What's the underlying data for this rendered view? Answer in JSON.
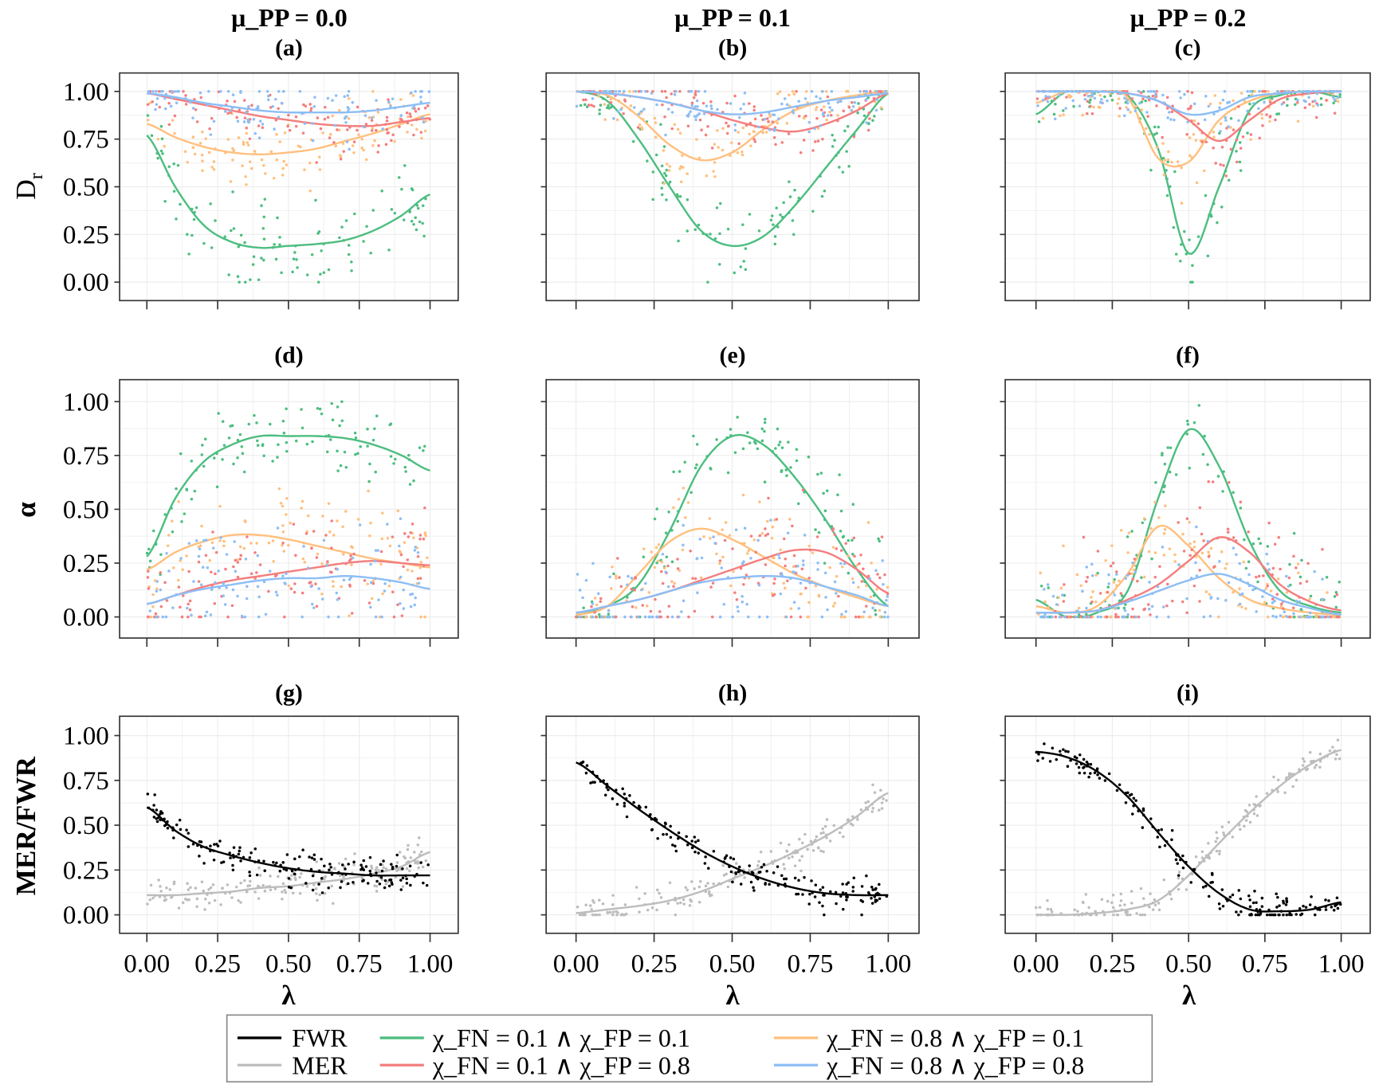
{
  "colors": {
    "FWR": "#000000",
    "MER": "#bdbdbd",
    "g11": "#4dbe80",
    "g81": "#ffc07f",
    "g18": "#f47e7e",
    "g88": "#8dbef5"
  },
  "column_titles": [
    "μ_PP = 0.0",
    "μ_PP = 0.1",
    "μ_PP = 0.2"
  ],
  "row_ylabels": [
    "D",
    "r",
    "α",
    "MER/FWR"
  ],
  "xlabel": "λ",
  "y_ticks": [
    "0.00",
    "0.25",
    "0.50",
    "0.75",
    "1.00"
  ],
  "x_ticks": [
    "0.00",
    "0.25",
    "0.50",
    "0.75",
    "1.00"
  ],
  "legend": [
    {
      "key": "FWR",
      "label": "FWR"
    },
    {
      "key": "MER",
      "label": "MER"
    },
    {
      "key": "g11",
      "label": "χ_FN = 0.1 ∧ χ_FP = 0.1"
    },
    {
      "key": "g18",
      "label": "χ_FN = 0.1 ∧ χ_FP = 0.8"
    },
    {
      "key": "g81",
      "label": "χ_FN = 0.8 ∧ χ_FP = 0.1"
    },
    {
      "key": "g88",
      "label": "χ_FN = 0.8 ∧ χ_FP = 0.8"
    }
  ],
  "chart_data": {
    "type": "scatter",
    "xlabel": "λ",
    "xlim": [
      0,
      1
    ],
    "ylim": [
      0,
      1
    ],
    "grid": true,
    "legend_position": "bottom",
    "x": [
      0,
      0.1,
      0.2,
      0.3,
      0.4,
      0.5,
      0.6,
      0.7,
      0.8,
      0.9,
      1.0
    ],
    "panels": [
      {
        "label": "(a)",
        "ylabel": "Dr",
        "series": [
          {
            "key": "g11",
            "y": [
              0.77,
              0.5,
              0.3,
              0.21,
              0.18,
              0.19,
              0.2,
              0.22,
              0.27,
              0.35,
              0.46
            ]
          },
          {
            "key": "g81",
            "y": [
              0.83,
              0.76,
              0.71,
              0.68,
              0.67,
              0.68,
              0.7,
              0.74,
              0.78,
              0.83,
              0.88
            ]
          },
          {
            "key": "g18",
            "y": [
              0.99,
              0.96,
              0.93,
              0.9,
              0.87,
              0.85,
              0.83,
              0.82,
              0.82,
              0.84,
              0.86
            ]
          },
          {
            "key": "g88",
            "y": [
              0.99,
              0.97,
              0.94,
              0.92,
              0.9,
              0.89,
              0.89,
              0.89,
              0.9,
              0.92,
              0.94
            ]
          }
        ]
      },
      {
        "label": "(b)",
        "ylabel": "Dr",
        "series": [
          {
            "key": "g11",
            "y": [
              1.0,
              0.95,
              0.75,
              0.5,
              0.27,
              0.19,
              0.24,
              0.4,
              0.6,
              0.8,
              0.99
            ]
          },
          {
            "key": "g81",
            "y": [
              1.0,
              0.98,
              0.87,
              0.72,
              0.64,
              0.68,
              0.8,
              0.9,
              0.95,
              0.98,
              1.0
            ]
          },
          {
            "key": "g18",
            "y": [
              1.0,
              0.99,
              0.97,
              0.94,
              0.9,
              0.85,
              0.81,
              0.79,
              0.83,
              0.9,
              0.99
            ]
          },
          {
            "key": "g88",
            "y": [
              1.0,
              0.99,
              0.97,
              0.94,
              0.9,
              0.88,
              0.89,
              0.92,
              0.95,
              0.97,
              0.99
            ]
          }
        ]
      },
      {
        "label": "(c)",
        "ylabel": "Dr",
        "series": [
          {
            "key": "g11",
            "y": [
              0.88,
              1.0,
              1.0,
              0.98,
              0.7,
              0.15,
              0.5,
              0.9,
              0.98,
              1.0,
              0.97
            ]
          },
          {
            "key": "g81",
            "y": [
              0.94,
              1.0,
              1.0,
              0.97,
              0.65,
              0.63,
              0.85,
              0.95,
              0.99,
              1.0,
              1.0
            ]
          },
          {
            "key": "g18",
            "y": [
              1.0,
              1.0,
              1.0,
              0.99,
              0.95,
              0.85,
              0.74,
              0.85,
              0.96,
              0.99,
              1.0
            ]
          },
          {
            "key": "g88",
            "y": [
              1.0,
              1.0,
              1.0,
              0.99,
              0.95,
              0.88,
              0.9,
              0.97,
              0.99,
              1.0,
              1.0
            ]
          }
        ]
      },
      {
        "label": "(d)",
        "ylabel": "α",
        "series": [
          {
            "key": "g11",
            "y": [
              0.28,
              0.55,
              0.72,
              0.8,
              0.84,
              0.84,
              0.84,
              0.83,
              0.8,
              0.75,
              0.68
            ]
          },
          {
            "key": "g81",
            "y": [
              0.22,
              0.3,
              0.35,
              0.38,
              0.38,
              0.36,
              0.33,
              0.3,
              0.27,
              0.25,
              0.23
            ]
          },
          {
            "key": "g18",
            "y": [
              0.06,
              0.1,
              0.14,
              0.17,
              0.19,
              0.21,
              0.23,
              0.25,
              0.26,
              0.25,
              0.24
            ]
          },
          {
            "key": "g88",
            "y": [
              0.06,
              0.1,
              0.13,
              0.15,
              0.17,
              0.18,
              0.18,
              0.19,
              0.18,
              0.16,
              0.13
            ]
          }
        ]
      },
      {
        "label": "(e)",
        "ylabel": "α",
        "series": [
          {
            "key": "g11",
            "y": [
              0.01,
              0.05,
              0.15,
              0.4,
              0.7,
              0.84,
              0.8,
              0.65,
              0.45,
              0.22,
              0.05
            ]
          },
          {
            "key": "g81",
            "y": [
              0.01,
              0.05,
              0.2,
              0.35,
              0.41,
              0.36,
              0.28,
              0.2,
              0.14,
              0.09,
              0.05
            ]
          },
          {
            "key": "g18",
            "y": [
              0.02,
              0.05,
              0.08,
              0.12,
              0.17,
              0.22,
              0.27,
              0.31,
              0.3,
              0.22,
              0.11
            ]
          },
          {
            "key": "g88",
            "y": [
              0.02,
              0.05,
              0.08,
              0.12,
              0.16,
              0.18,
              0.19,
              0.18,
              0.14,
              0.1,
              0.05
            ]
          }
        ]
      },
      {
        "label": "(f)",
        "ylabel": "α",
        "series": [
          {
            "key": "g11",
            "y": [
              0.08,
              0.0,
              0.02,
              0.12,
              0.55,
              0.87,
              0.7,
              0.35,
              0.12,
              0.05,
              0.02
            ]
          },
          {
            "key": "g81",
            "y": [
              0.05,
              0.02,
              0.05,
              0.2,
              0.42,
              0.33,
              0.18,
              0.08,
              0.04,
              0.02,
              0.01
            ]
          },
          {
            "key": "g18",
            "y": [
              0.02,
              0.02,
              0.03,
              0.08,
              0.15,
              0.26,
              0.37,
              0.3,
              0.15,
              0.07,
              0.03
            ]
          },
          {
            "key": "g88",
            "y": [
              0.02,
              0.02,
              0.03,
              0.07,
              0.12,
              0.17,
              0.2,
              0.15,
              0.08,
              0.04,
              0.01
            ]
          }
        ]
      },
      {
        "label": "(g)",
        "ylabel": "MER/FWR",
        "series": [
          {
            "key": "MER",
            "y": [
              0.11,
              0.11,
              0.12,
              0.13,
              0.15,
              0.16,
              0.18,
              0.2,
              0.23,
              0.27,
              0.35
            ]
          },
          {
            "key": "FWR",
            "y": [
              0.6,
              0.47,
              0.38,
              0.33,
              0.29,
              0.26,
              0.24,
              0.23,
              0.22,
              0.22,
              0.22
            ]
          }
        ]
      },
      {
        "label": "(h)",
        "ylabel": "MER/FWR",
        "series": [
          {
            "key": "MER",
            "y": [
              0.01,
              0.03,
              0.05,
              0.08,
              0.13,
              0.2,
              0.27,
              0.35,
              0.44,
              0.55,
              0.68
            ]
          },
          {
            "key": "FWR",
            "y": [
              0.85,
              0.72,
              0.59,
              0.47,
              0.36,
              0.27,
              0.2,
              0.15,
              0.12,
              0.11,
              0.11
            ]
          }
        ]
      },
      {
        "label": "(i)",
        "ylabel": "MER/FWR",
        "series": [
          {
            "key": "MER",
            "y": [
              0.0,
              0.0,
              0.01,
              0.03,
              0.08,
              0.22,
              0.4,
              0.57,
              0.72,
              0.84,
              0.92
            ]
          },
          {
            "key": "FWR",
            "y": [
              0.91,
              0.88,
              0.8,
              0.66,
              0.46,
              0.27,
              0.12,
              0.03,
              0.02,
              0.03,
              0.07
            ]
          }
        ]
      }
    ]
  }
}
